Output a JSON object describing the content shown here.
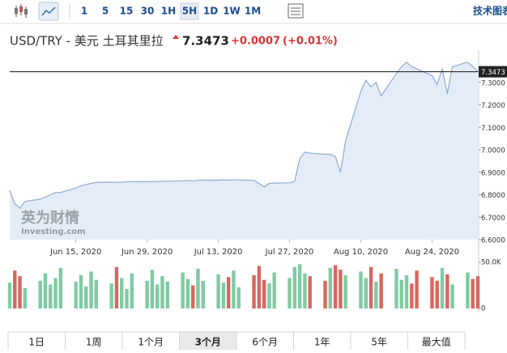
{
  "toolbar": {
    "intervals": [
      "1",
      "5",
      "15",
      "30",
      "1H",
      "5H",
      "1D",
      "1W",
      "1M"
    ],
    "selected_interval": "5H",
    "right_link": "技术图表"
  },
  "header": {
    "title": "USD/TRY - 美元 土耳其里拉",
    "price": "7.3473",
    "change": "+0.0007",
    "change_pct": "(+0.01%)"
  },
  "watermark": {
    "brand": "英为财情",
    "site": "Investing.com"
  },
  "chart_data": [
    {
      "type": "area",
      "color": "#8eabd0",
      "fill": "#e4edf7",
      "x": [
        "2020-06-02",
        "2020-06-03",
        "2020-06-04",
        "2020-06-05",
        "2020-06-08",
        "2020-06-09",
        "2020-06-10",
        "2020-06-11",
        "2020-06-12",
        "2020-06-15",
        "2020-06-16",
        "2020-06-17",
        "2020-06-18",
        "2020-06-19",
        "2020-06-22",
        "2020-06-23",
        "2020-06-24",
        "2020-06-25",
        "2020-06-26",
        "2020-06-29",
        "2020-06-30",
        "2020-07-01",
        "2020-07-02",
        "2020-07-03",
        "2020-07-06",
        "2020-07-07",
        "2020-07-08",
        "2020-07-09",
        "2020-07-10",
        "2020-07-13",
        "2020-07-14",
        "2020-07-15",
        "2020-07-16",
        "2020-07-17",
        "2020-07-20",
        "2020-07-21",
        "2020-07-22",
        "2020-07-23",
        "2020-07-24",
        "2020-07-27",
        "2020-07-28",
        "2020-07-29",
        "2020-07-30",
        "2020-07-31",
        "2020-08-03",
        "2020-08-04",
        "2020-08-05",
        "2020-08-06",
        "2020-08-07",
        "2020-08-10",
        "2020-08-11",
        "2020-08-12",
        "2020-08-13",
        "2020-08-14",
        "2020-08-17",
        "2020-08-18",
        "2020-08-19",
        "2020-08-20",
        "2020-08-21",
        "2020-08-24",
        "2020-08-25",
        "2020-08-26",
        "2020-08-27",
        "2020-08-28",
        "2020-08-31",
        "2020-09-01",
        "2020-09-02"
      ],
      "values": [
        6.82,
        6.76,
        6.74,
        6.77,
        6.78,
        6.79,
        6.8,
        6.81,
        6.81,
        6.83,
        6.84,
        6.845,
        6.85,
        6.855,
        6.856,
        6.855,
        6.856,
        6.857,
        6.858,
        6.858,
        6.858,
        6.859,
        6.86,
        6.86,
        6.862,
        6.863,
        6.862,
        6.864,
        6.865,
        6.865,
        6.866,
        6.865,
        6.866,
        6.866,
        6.864,
        6.85,
        6.835,
        6.85,
        6.852,
        6.853,
        6.86,
        6.96,
        6.99,
        6.985,
        6.98,
        6.98,
        6.97,
        6.9,
        7.04,
        7.26,
        7.31,
        7.28,
        7.3,
        7.24,
        7.34,
        7.37,
        7.39,
        7.37,
        7.36,
        7.33,
        7.29,
        7.36,
        7.25,
        7.37,
        7.39,
        7.37,
        7.3473
      ],
      "xlim": [
        "2020-06-02",
        "2020-09-02"
      ],
      "xticks": [
        {
          "value": "2020-06-15",
          "label": "Jun 15, 2020"
        },
        {
          "value": "2020-06-29",
          "label": "Jun 29, 2020"
        },
        {
          "value": "2020-07-13",
          "label": "Jul 13, 2020"
        },
        {
          "value": "2020-07-27",
          "label": "Jul 27, 2020"
        },
        {
          "value": "2020-08-10",
          "label": "Aug 10, 2020"
        },
        {
          "value": "2020-08-24",
          "label": "Aug 24, 2020"
        }
      ],
      "ylim": [
        6.6,
        7.4
      ],
      "yticks": [
        {
          "value": 6.6,
          "label": "6.6000"
        },
        {
          "value": 6.7,
          "label": "6.7000"
        },
        {
          "value": 6.8,
          "label": "6.8000"
        },
        {
          "value": 6.9,
          "label": "6.9000"
        },
        {
          "value": 7.0,
          "label": "7.0000"
        },
        {
          "value": 7.1,
          "label": "7.1000"
        },
        {
          "value": 7.2,
          "label": "7.2000"
        },
        {
          "value": 7.3,
          "label": "7.3000"
        }
      ],
      "reference_line": 7.3473
    },
    {
      "type": "bar",
      "up_color": "#7fcba3",
      "down_color": "#d8675e",
      "x": [
        "2020-06-02",
        "2020-06-03",
        "2020-06-04",
        "2020-06-05",
        "2020-06-08",
        "2020-06-09",
        "2020-06-10",
        "2020-06-11",
        "2020-06-12",
        "2020-06-15",
        "2020-06-16",
        "2020-06-17",
        "2020-06-18",
        "2020-06-19",
        "2020-06-22",
        "2020-06-23",
        "2020-06-24",
        "2020-06-25",
        "2020-06-26",
        "2020-06-29",
        "2020-06-30",
        "2020-07-01",
        "2020-07-02",
        "2020-07-03",
        "2020-07-06",
        "2020-07-07",
        "2020-07-08",
        "2020-07-09",
        "2020-07-10",
        "2020-07-13",
        "2020-07-14",
        "2020-07-15",
        "2020-07-16",
        "2020-07-17",
        "2020-07-20",
        "2020-07-21",
        "2020-07-22",
        "2020-07-23",
        "2020-07-24",
        "2020-07-27",
        "2020-07-28",
        "2020-07-29",
        "2020-07-30",
        "2020-07-31",
        "2020-08-03",
        "2020-08-04",
        "2020-08-05",
        "2020-08-06",
        "2020-08-07",
        "2020-08-10",
        "2020-08-11",
        "2020-08-12",
        "2020-08-13",
        "2020-08-14",
        "2020-08-17",
        "2020-08-18",
        "2020-08-19",
        "2020-08-20",
        "2020-08-21",
        "2020-08-24",
        "2020-08-25",
        "2020-08-26",
        "2020-08-27",
        "2020-08-28",
        "2020-08-31",
        "2020-09-01",
        "2020-09-02"
      ],
      "values": [
        28000,
        41000,
        35000,
        22000,
        30000,
        38000,
        26000,
        33000,
        44000,
        29000,
        36000,
        24000,
        40000,
        31000,
        27000,
        45000,
        33000,
        21000,
        38000,
        30000,
        42000,
        26000,
        35000,
        29000,
        39000,
        32000,
        25000,
        43000,
        30000,
        37000,
        28000,
        34000,
        41000,
        23000,
        36000,
        46000,
        31000,
        27000,
        39000,
        33000,
        45000,
        48000,
        38000,
        35000,
        30000,
        44000,
        47000,
        42000,
        36000,
        40000,
        33000,
        45000,
        29000,
        38000,
        43000,
        31000,
        36000,
        27000,
        41000,
        34000,
        30000,
        44000,
        37000,
        26000,
        39000,
        32000,
        35000
      ],
      "ylim": [
        0,
        50000
      ],
      "yticks": [
        0,
        {
          "value": 50000,
          "label": "50.0K"
        }
      ]
    }
  ],
  "ranges": {
    "items": [
      "1日",
      "1周",
      "1个月",
      "3个月",
      "6个月",
      "1年",
      "5年",
      "最大值"
    ],
    "selected": "3个月"
  }
}
